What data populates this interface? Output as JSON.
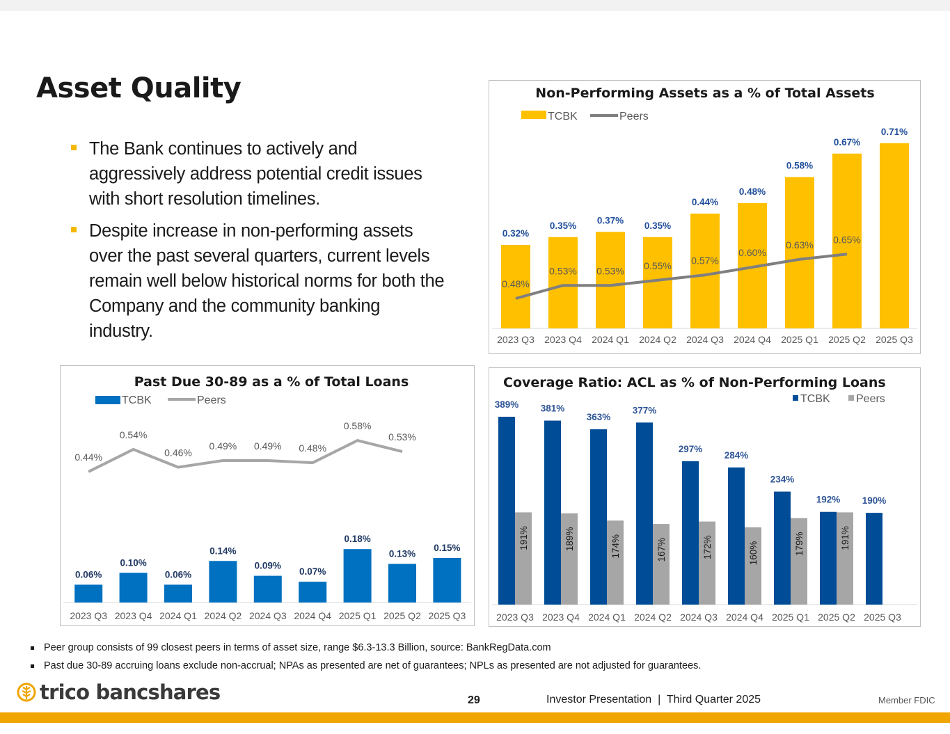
{
  "page": {
    "title": "Asset Quality",
    "bullets": [
      "The Bank continues to actively and aggressively address potential credit issues with short resolution timelines.",
      "Despite increase in non-performing assets over the past several quarters, current levels remain well below historical norms for both the Company and the community banking industry."
    ],
    "notes": [
      "Peer group consists of 99 closest peers in terms of asset size, range $6.3-13.3 Billion, source: BankRegData.com",
      "Past due 30-89 accruing loans exclude non-accrual; NPAs as presented are net of guarantees; NPLs as presented are not adjusted for guarantees."
    ],
    "footer": {
      "logo_text": "trico bancshares",
      "page_number": "29",
      "presentation": "Investor Presentation  |  Third Quarter 2025",
      "member_fdic": "Member FDIC"
    }
  },
  "colors": {
    "tcbk_yellow": "#ffc000",
    "tcbk_blue": "#0070c0",
    "tcbk_navy": "#004c97",
    "peers_line_dark": "#7f7f7f",
    "peers_line_light": "#a6a6a6",
    "peers_bar": "#a6a6a6",
    "accent_gold": "#f0a500"
  },
  "chart_data": [
    {
      "id": "npa",
      "type": "bar",
      "title": "Non-Performing Assets as a % of Total Assets",
      "categories": [
        "2023 Q3",
        "2023 Q4",
        "2024 Q1",
        "2024 Q2",
        "2024 Q3",
        "2024 Q4",
        "2025 Q1",
        "2025 Q2",
        "2025 Q3"
      ],
      "series": [
        {
          "name": "TCBK",
          "kind": "bar",
          "values": [
            0.32,
            0.35,
            0.37,
            0.35,
            0.44,
            0.48,
            0.58,
            0.67,
            0.71
          ],
          "labels": [
            "0.32%",
            "0.35%",
            "0.37%",
            "0.35%",
            "0.44%",
            "0.48%",
            "0.58%",
            "0.67%",
            "0.71%"
          ]
        },
        {
          "name": "Peers",
          "kind": "line",
          "values": [
            0.48,
            0.53,
            0.53,
            0.55,
            0.57,
            0.6,
            0.63,
            0.65,
            null
          ],
          "labels": [
            "0.48%",
            "0.53%",
            "0.53%",
            "0.55%",
            "0.57%",
            "0.60%",
            "0.63%",
            "0.65%",
            ""
          ]
        }
      ],
      "ylim": [
        0,
        0.8
      ],
      "legend": "top-left"
    },
    {
      "id": "pastdue",
      "type": "bar",
      "title": "Past Due 30-89 as a % of Total Loans",
      "categories": [
        "2023 Q3",
        "2023 Q4",
        "2024 Q1",
        "2024 Q2",
        "2024 Q3",
        "2024 Q4",
        "2025 Q1",
        "2025 Q2",
        "2025 Q3"
      ],
      "series": [
        {
          "name": "TCBK",
          "kind": "bar",
          "values": [
            0.06,
            0.1,
            0.06,
            0.14,
            0.09,
            0.07,
            0.18,
            0.13,
            0.15
          ],
          "labels": [
            "0.06%",
            "0.10%",
            "0.06%",
            "0.14%",
            "0.09%",
            "0.07%",
            "0.18%",
            "0.13%",
            "0.15%"
          ]
        },
        {
          "name": "Peers",
          "kind": "line",
          "values": [
            0.44,
            0.54,
            0.46,
            0.49,
            0.49,
            0.48,
            0.58,
            0.53,
            null
          ],
          "labels": [
            "0.44%",
            "0.54%",
            "0.46%",
            "0.49%",
            "0.49%",
            "0.48%",
            "0.58%",
            "0.53%",
            ""
          ]
        }
      ],
      "legend": "top-left"
    },
    {
      "id": "coverage",
      "type": "bar",
      "title": "Coverage Ratio:  ACL as % of Non-Performing Loans",
      "categories": [
        "2023 Q3",
        "2023 Q4",
        "2024 Q1",
        "2024 Q2",
        "2024 Q3",
        "2024 Q4",
        "2025 Q1",
        "2025 Q2",
        "2025 Q3"
      ],
      "series": [
        {
          "name": "TCBK",
          "kind": "bar",
          "values": [
            389,
            381,
            363,
            377,
            297,
            284,
            234,
            192,
            190
          ],
          "labels": [
            "389%",
            "381%",
            "363%",
            "377%",
            "297%",
            "284%",
            "234%",
            "192%",
            "190%"
          ]
        },
        {
          "name": "Peers",
          "kind": "bar",
          "values": [
            191,
            189,
            174,
            167,
            172,
            160,
            179,
            191,
            null
          ],
          "labels": [
            "191%",
            "189%",
            "174%",
            "167%",
            "172%",
            "160%",
            "179%",
            "191%",
            ""
          ]
        }
      ],
      "ylim": [
        0,
        400
      ],
      "legend": "top-right"
    }
  ]
}
